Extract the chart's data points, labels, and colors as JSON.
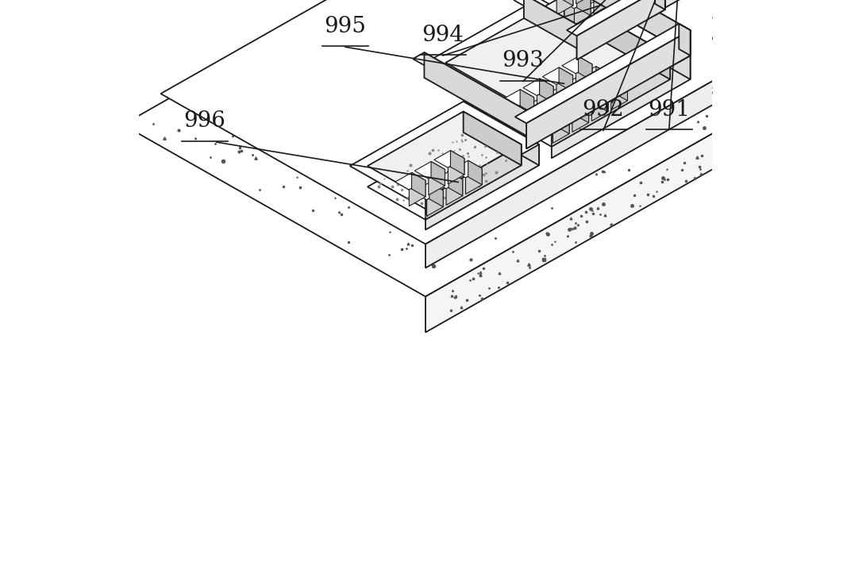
{
  "bg_color": "#ffffff",
  "lc": "#1a1a1a",
  "lw": 1.3,
  "label_fs": 20,
  "iso_ox": 0.5,
  "iso_oy": 0.42,
  "iso_sx": 0.044,
  "iso_sy": 0.025,
  "iso_sz": 0.052
}
